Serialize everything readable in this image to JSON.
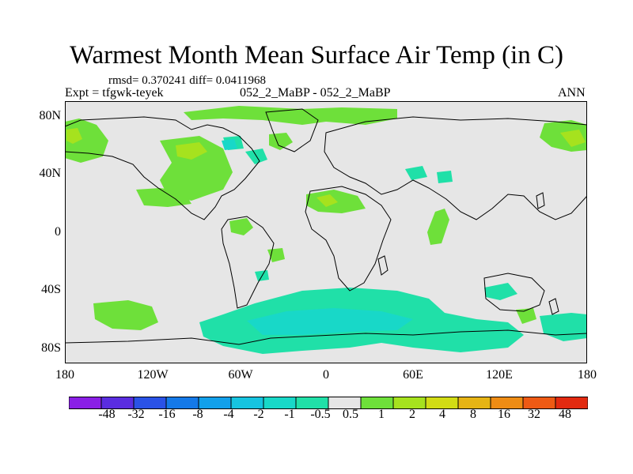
{
  "title": "Warmest Month Mean Surface Air Temp (in C)",
  "stats": "rmsd= 0.370241 diff= 0.0411968",
  "expt": "Expt = tfgwk-teyek",
  "case": "052_2_MaBP - 052_2_MaBP",
  "period": "ANN",
  "y_ticks": [
    "80N",
    "40N",
    "0",
    "40S",
    "80S"
  ],
  "x_ticks": [
    "180",
    "120W",
    "60W",
    "0",
    "60E",
    "120E",
    "180"
  ],
  "legend": {
    "labels": [
      "-48",
      "-32",
      "-16",
      "-8",
      "-4",
      "-2",
      "-1",
      "-0.5",
      "0.5",
      "1",
      "2",
      "4",
      "8",
      "16",
      "32",
      "48"
    ],
    "colors": [
      "#8a1fe6",
      "#5a2de0",
      "#2a52e6",
      "#1479e8",
      "#12a0ea",
      "#16c4e0",
      "#18d8c8",
      "#20e0a8",
      "#e6e6e6",
      "#6ee03a",
      "#a6e21e",
      "#d2dc14",
      "#e6b414",
      "#ee8c14",
      "#ee5a14",
      "#e22a10"
    ]
  }
}
